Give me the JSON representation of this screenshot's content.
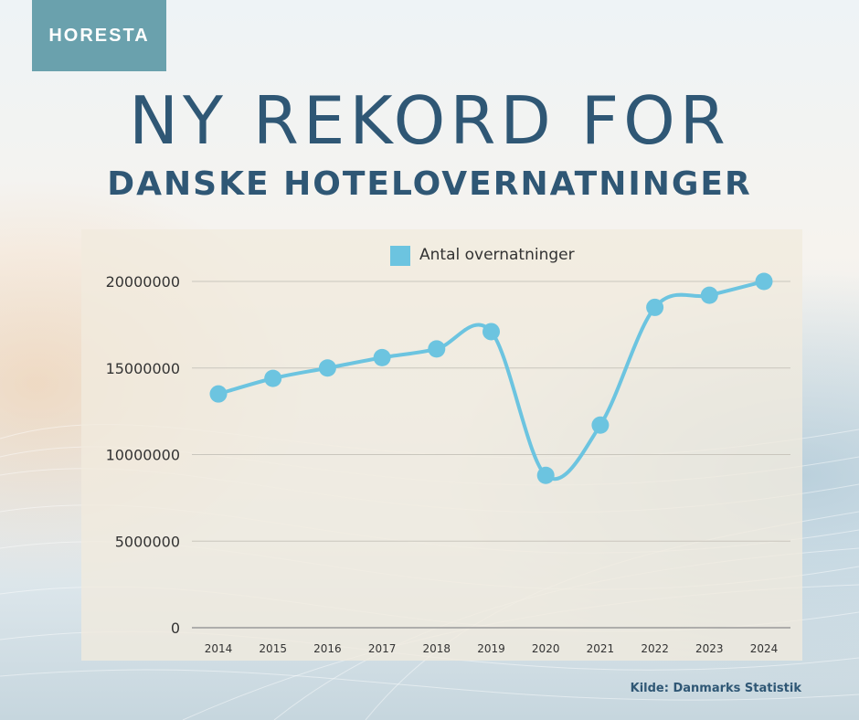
{
  "logo_text": "HORESTA",
  "title": "NY REKORD FOR",
  "subtitle": "DANSKE HOTELOVERNATNINGER",
  "source": "Kilde: Danmarks Statistik",
  "colors": {
    "accent": "#2f5775",
    "series": "#6cc4e0",
    "logo_bg": "#6aa1ad"
  },
  "chart_data": {
    "type": "line",
    "categories": [
      "2014",
      "2015",
      "2016",
      "2017",
      "2018",
      "2019",
      "2020",
      "2021",
      "2022",
      "2023",
      "2024"
    ],
    "series": [
      {
        "name": "Antal overnatninger",
        "values": [
          13500000,
          14400000,
          15000000,
          15600000,
          16100000,
          17100000,
          8800000,
          11700000,
          18500000,
          19200000,
          20000000
        ]
      }
    ],
    "y_ticks": [
      0,
      5000000,
      10000000,
      15000000,
      20000000
    ],
    "ylim": [
      0,
      20000000
    ],
    "grid": true,
    "legend_position": "top-center",
    "smooth": true
  }
}
